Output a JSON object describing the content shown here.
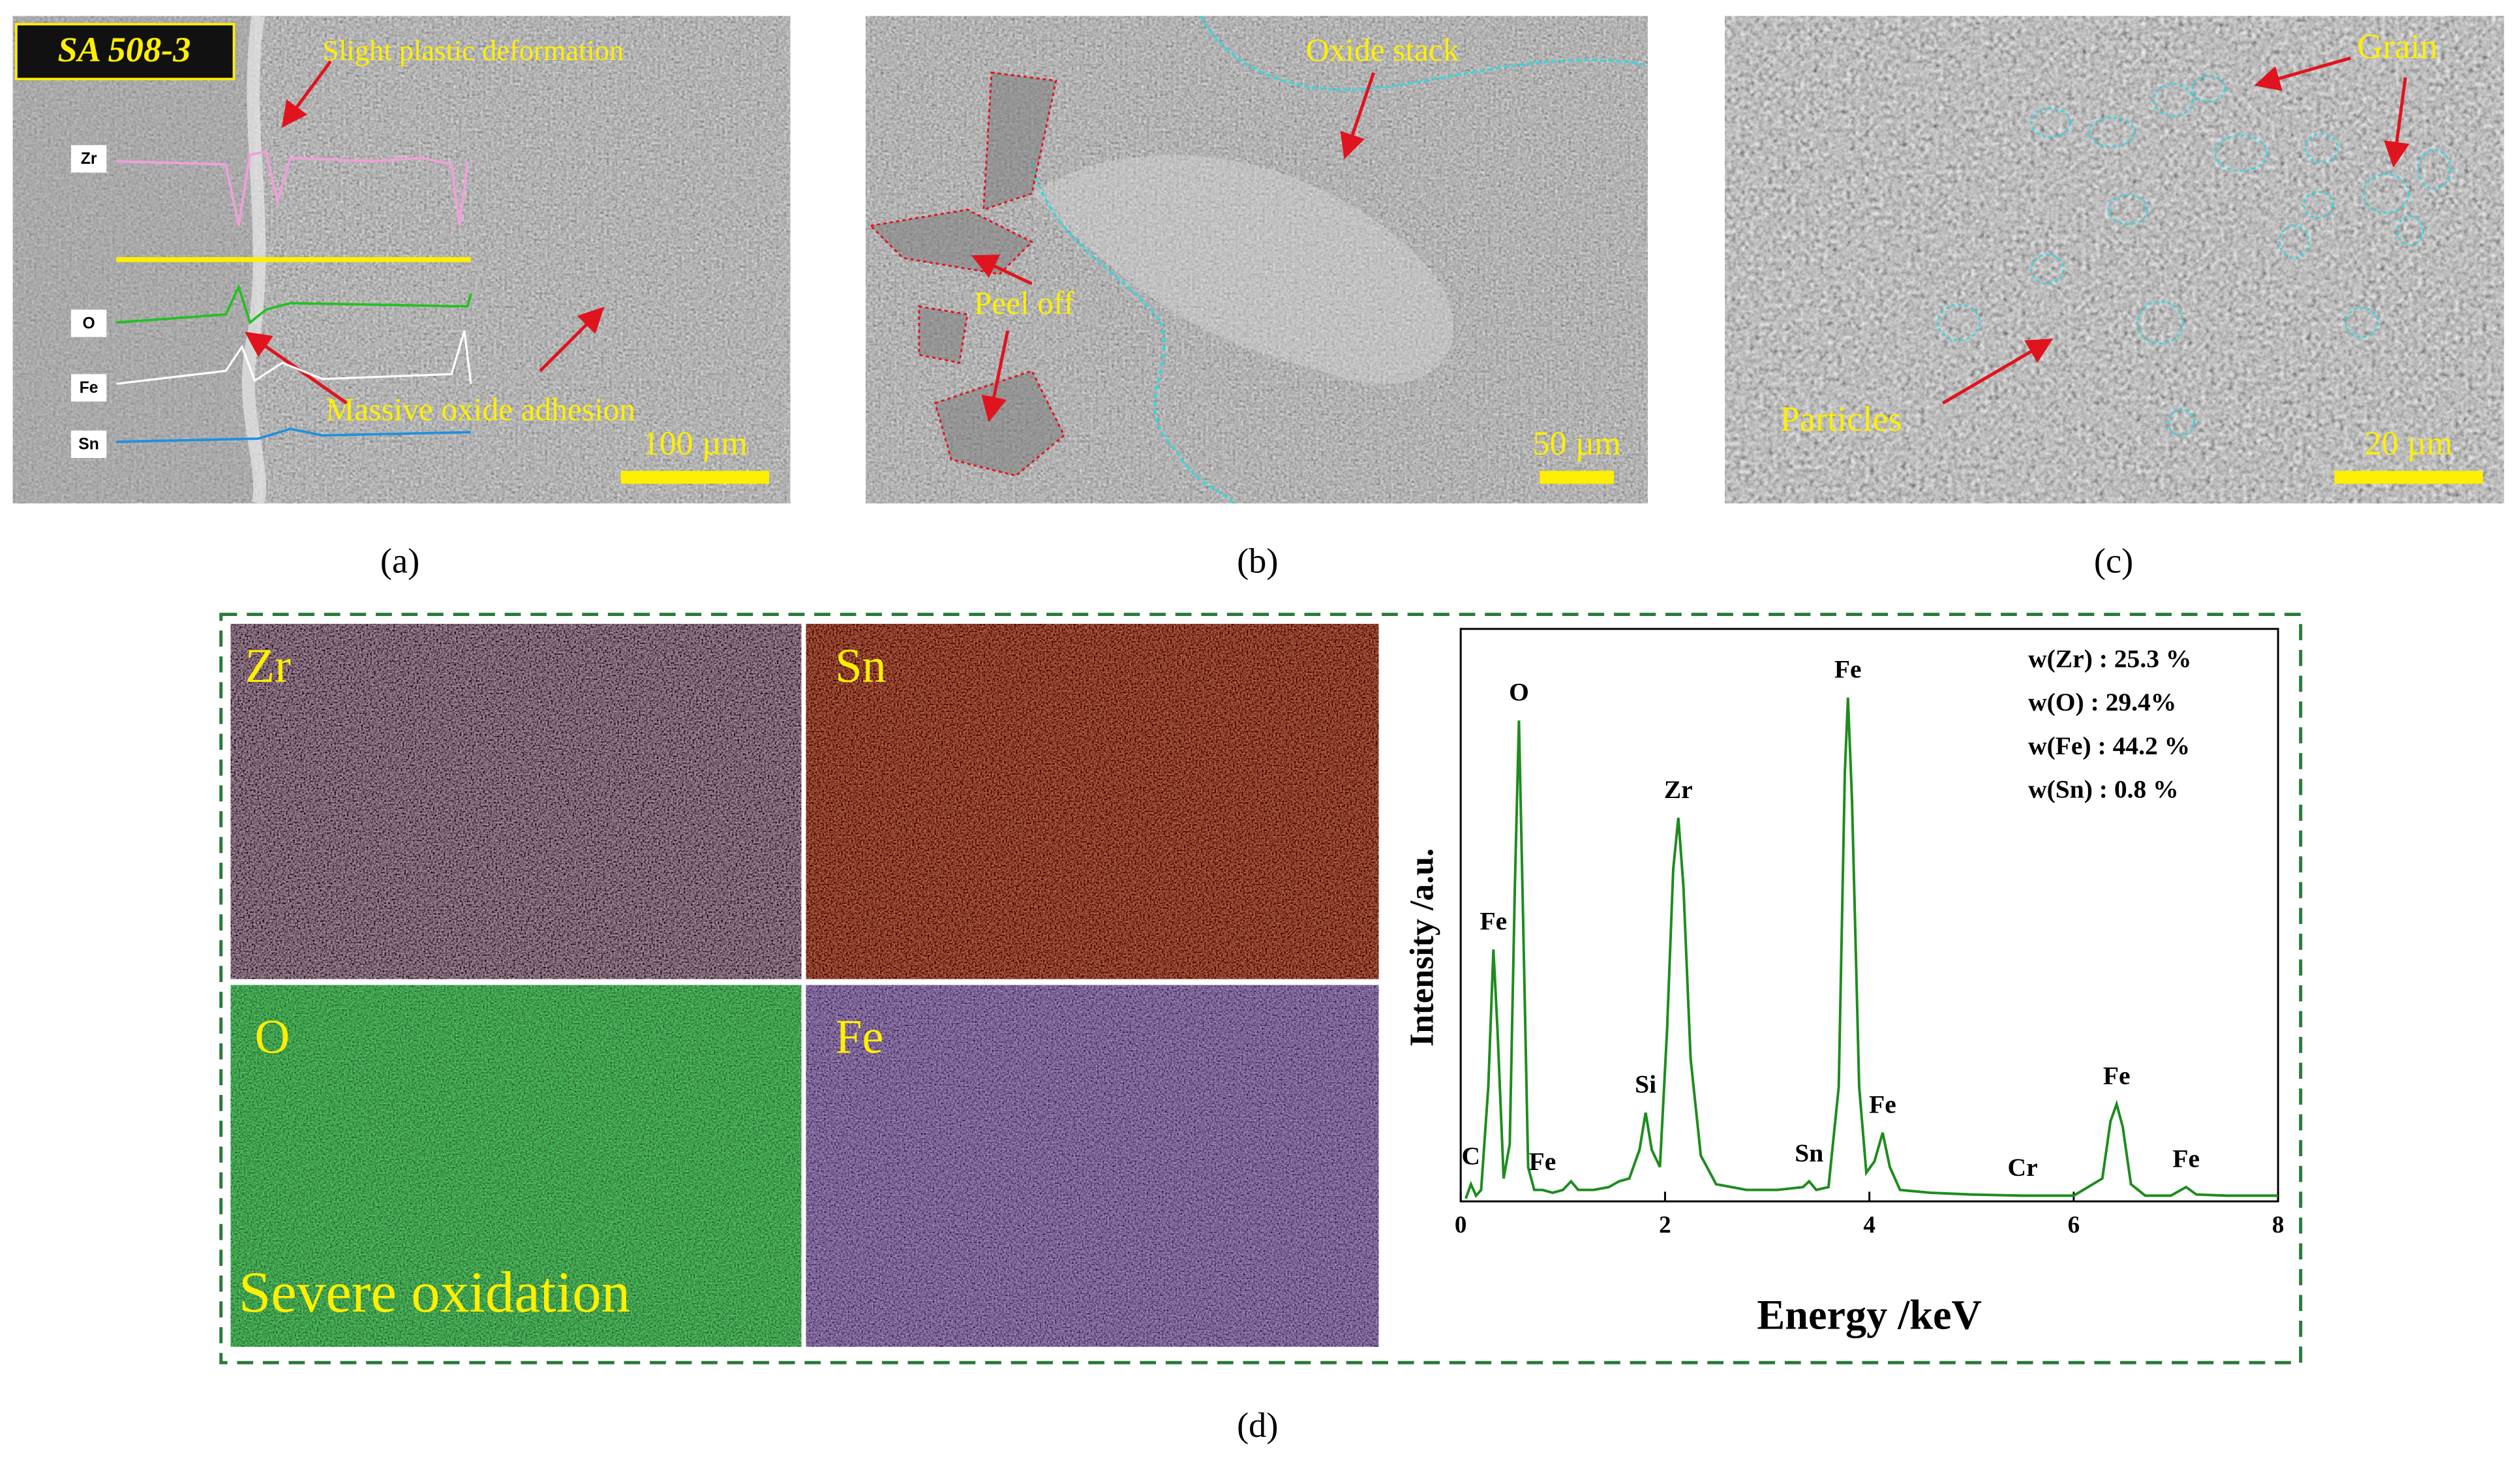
{
  "panels": [
    {
      "caption": "(a)",
      "badge": "SA 508-3",
      "annotations": [
        "Slight plastic deformation",
        "Massive oxide adhesion"
      ],
      "scale_bar": "100 µm",
      "elements": [
        "Zr",
        "O",
        "Fe",
        "Sn"
      ]
    },
    {
      "caption": "(b)",
      "annotations": [
        "Oxide stack",
        "Peel off"
      ],
      "scale_bar": "50 µm"
    },
    {
      "caption": "(c)",
      "annotations": [
        "Grain",
        "Particles"
      ],
      "scale_bar": "20 µm"
    },
    {
      "caption": "(d)",
      "maps": [
        "Zr",
        "Sn",
        "O",
        "Fe"
      ],
      "note": "Severe oxidation"
    }
  ],
  "chart_data": {
    "type": "line",
    "xlabel": "Energy /keV",
    "ylabel": "Intensity /a.u.",
    "xlim": [
      0,
      8
    ],
    "xticks": [
      0,
      2,
      4,
      6,
      8
    ],
    "ylim": [
      0,
      100
    ],
    "color": "#1e8c1e",
    "x": [
      0.05,
      0.1,
      0.15,
      0.2,
      0.27,
      0.32,
      0.36,
      0.42,
      0.48,
      0.53,
      0.57,
      0.61,
      0.66,
      0.72,
      0.8,
      0.9,
      1.0,
      1.08,
      1.15,
      1.3,
      1.45,
      1.55,
      1.65,
      1.75,
      1.81,
      1.87,
      1.95,
      2.02,
      2.08,
      2.13,
      2.18,
      2.25,
      2.35,
      2.5,
      2.8,
      3.1,
      3.35,
      3.41,
      3.48,
      3.6,
      3.7,
      3.76,
      3.79,
      3.83,
      3.9,
      3.97,
      4.05,
      4.13,
      4.2,
      4.3,
      4.6,
      5.0,
      5.5,
      6.0,
      6.28,
      6.36,
      6.42,
      6.48,
      6.56,
      6.7,
      6.95,
      7.1,
      7.2,
      7.5,
      8.0
    ],
    "values": [
      0.5,
      3,
      1,
      2,
      20,
      44,
      30,
      4,
      10,
      55,
      84,
      50,
      6,
      2,
      2,
      1.5,
      2,
      3.5,
      2,
      2,
      2.5,
      3.5,
      4,
      9,
      15.5,
      9,
      6,
      30,
      58,
      67,
      55,
      25,
      8,
      3,
      2,
      2,
      2.5,
      3.5,
      2,
      2.5,
      20,
      75,
      88,
      70,
      20,
      5,
      7,
      12,
      6,
      2,
      1.5,
      1.2,
      1,
      1,
      4,
      14,
      17,
      13,
      3,
      1,
      1,
      2.5,
      1.2,
      1,
      1
    ],
    "peak_labels": [
      {
        "text": "C",
        "x": 0.1
      },
      {
        "text": "Fe",
        "x": 0.32
      },
      {
        "text": "O",
        "x": 0.57
      },
      {
        "text": "Fe",
        "x": 0.8
      },
      {
        "text": "Si",
        "x": 1.81
      },
      {
        "text": "Zr",
        "x": 2.13
      },
      {
        "text": "Sn",
        "x": 3.41
      },
      {
        "text": "Fe",
        "x": 3.79
      },
      {
        "text": "Fe",
        "x": 4.13
      },
      {
        "text": "Cr",
        "x": 5.5
      },
      {
        "text": "Fe",
        "x": 6.42
      },
      {
        "text": "Fe",
        "x": 7.1
      }
    ],
    "composition": [
      "w(Zr) :  25.3 %",
      "w(O)  :  29.4%",
      "w(Fe) :  44.2 %",
      "w(Sn) :  0.8 %"
    ]
  }
}
